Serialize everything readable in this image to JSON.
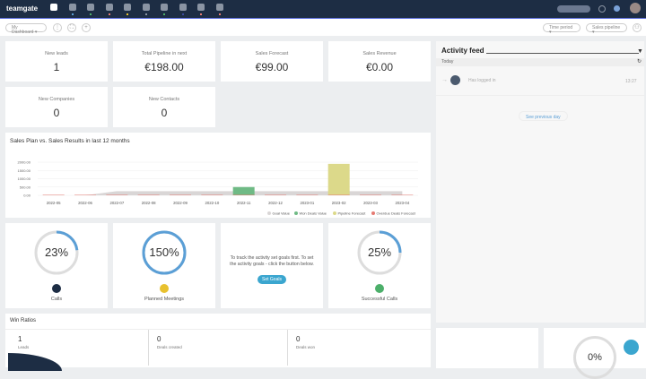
{
  "nav": {
    "logo": "teamgate",
    "icons": [
      "dashboard-icon",
      "people-icon",
      "companies-icon",
      "leads-icon",
      "deals-icon",
      "calendar-icon",
      "products-icon",
      "documents-icon",
      "reports-icon",
      "mail-icon"
    ],
    "avatar": "user-avatar"
  },
  "toolbar": {
    "dashboard_select": "My Dashboard",
    "time_period": "Time period",
    "pipeline": "Sales pipeline"
  },
  "kpis": [
    {
      "title": "New leads",
      "value": "1"
    },
    {
      "title": "Total Pipeline in next",
      "value": "€198.00"
    },
    {
      "title": "Sales Forecast",
      "value": "€99.00"
    },
    {
      "title": "Sales Revenue",
      "value": "€0.00"
    },
    {
      "title": "New Companies",
      "value": "0"
    },
    {
      "title": "New Contacts",
      "value": "0"
    }
  ],
  "chart_data": {
    "type": "bar",
    "title": "Sales Plan vs. Sales Results in last 12 months",
    "categories": [
      "2022-05",
      "2022-06",
      "2022-07",
      "2022-08",
      "2022-09",
      "2022-10",
      "2022-11",
      "2022-12",
      "2023-01",
      "2023-02",
      "2023-03",
      "2023-04"
    ],
    "yticks": [
      "2000.00",
      "1500.00",
      "1000.00",
      "500.00",
      "0.00"
    ],
    "ylim": [
      0,
      2000
    ],
    "series": [
      {
        "name": "Goal Value",
        "type": "area",
        "color": "#d9d6d6",
        "values": [
          0,
          0,
          250,
          250,
          250,
          250,
          250,
          250,
          250,
          250,
          250,
          250
        ]
      },
      {
        "name": "Won Deals Value",
        "color": "#6fba85",
        "values": [
          0,
          0,
          0,
          0,
          0,
          0,
          500,
          0,
          0,
          0,
          0,
          0
        ]
      },
      {
        "name": "Pipeline Forecast",
        "color": "#dcd98a",
        "values": [
          0,
          0,
          0,
          0,
          0,
          0,
          0,
          0,
          0,
          1900,
          0,
          0
        ]
      },
      {
        "name": "Overdue Deals Forecast",
        "color": "#e57a72",
        "values": [
          0,
          0,
          0,
          0,
          0,
          0,
          0,
          0,
          0,
          0,
          0,
          0
        ]
      }
    ]
  },
  "gauges": [
    {
      "pct": "23%",
      "value": 0.23,
      "label": "Calls",
      "icon_color": "#1d2d44"
    },
    {
      "pct": "150%",
      "value": 1,
      "label": "Planned Meetings",
      "icon_color": "#e8c12f"
    },
    {
      "pct": "25%",
      "value": 0.25,
      "label": "Successful Calls",
      "icon_color": "#4caf6a"
    }
  ],
  "goals_card": {
    "text": "To track the activity set goals first. To set the activity goals - click the button below.",
    "button": "Set Goals"
  },
  "win": {
    "title": "Win Ratios",
    "cols": [
      {
        "v": "1",
        "l": "Leads"
      },
      {
        "v": "0",
        "l": "Deals created"
      },
      {
        "v": "0",
        "l": "Deals won"
      }
    ]
  },
  "feed": {
    "title": "Activity feed",
    "day": "Today",
    "item": "Has logged in",
    "time": "13:27",
    "more": "See previous day"
  },
  "bottom_right": {
    "pct": "0%"
  }
}
